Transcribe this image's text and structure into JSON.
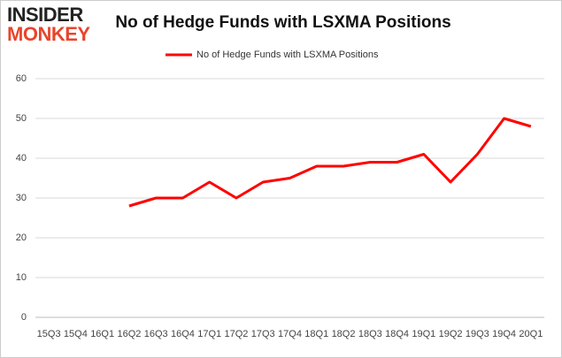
{
  "logo": [
    "INSIDER",
    "MONKEY"
  ],
  "chart_data": {
    "type": "line",
    "title": "No of Hedge Funds with LSXMA Positions",
    "categories": [
      "15Q3",
      "15Q4",
      "16Q1",
      "16Q2",
      "16Q3",
      "16Q4",
      "17Q1",
      "17Q2",
      "17Q3",
      "17Q4",
      "18Q1",
      "18Q2",
      "18Q3",
      "18Q4",
      "19Q1",
      "19Q2",
      "19Q3",
      "19Q4",
      "20Q1"
    ],
    "series": [
      {
        "name": "No of Hedge Funds with LSXMA Positions",
        "color": "#ff0000",
        "values": [
          null,
          null,
          null,
          28,
          30,
          30,
          34,
          30,
          34,
          35,
          38,
          38,
          39,
          39,
          41,
          34,
          41,
          50,
          48
        ]
      }
    ],
    "ylim": [
      0,
      60
    ],
    "yticks": [
      0,
      10,
      20,
      30,
      40,
      50,
      60
    ],
    "grid": true,
    "legend": "top"
  }
}
